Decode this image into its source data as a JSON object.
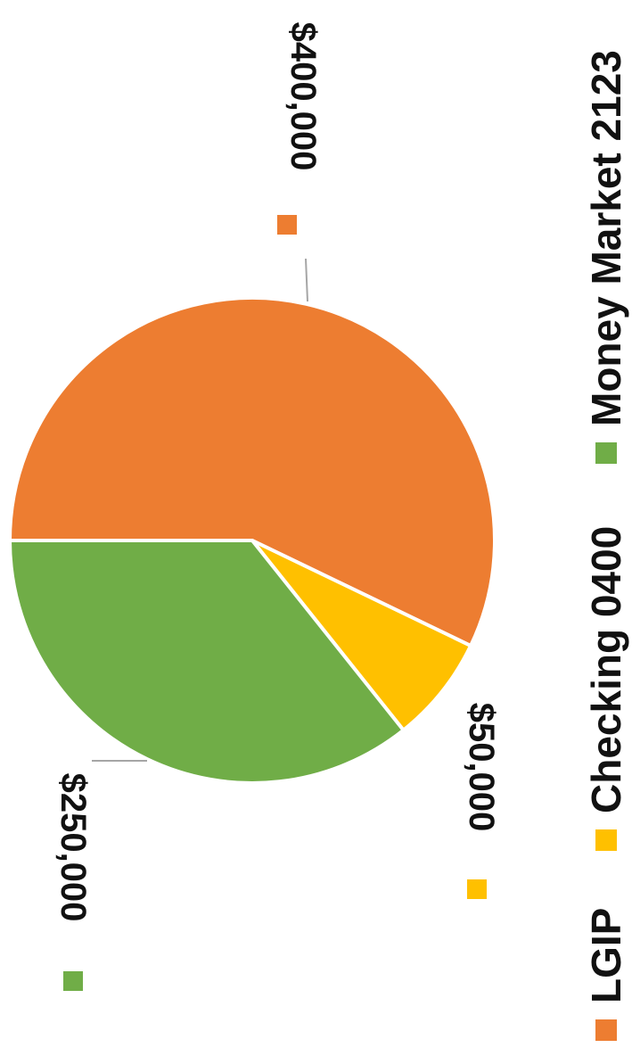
{
  "chart_data": {
    "type": "pie",
    "orientation": "rotated-90-clockwise",
    "slices": [
      {
        "name": "LGIP",
        "value": 400000,
        "label": "$400,000",
        "color": "#ED7D31"
      },
      {
        "name": "Checking 0400",
        "value": 50000,
        "label": "$50,000",
        "color": "#FFC000"
      },
      {
        "name": "Money Market 2123",
        "value": 250000,
        "label": "$250,000",
        "color": "#70AD47"
      }
    ],
    "legend_position": "bottom"
  }
}
